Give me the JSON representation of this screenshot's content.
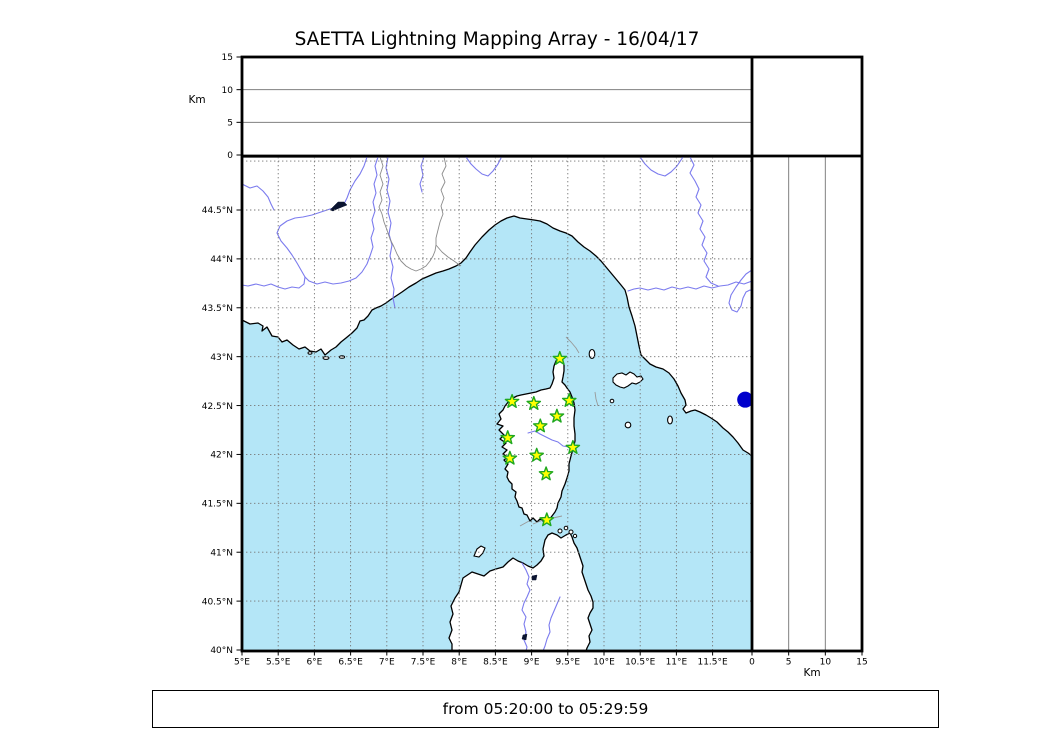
{
  "title": "SAETTA Lightning Mapping Array - 16/04/17",
  "footer": {
    "time_range": "from 05:20:00 to 05:29:59"
  },
  "colors": {
    "sea": "#b4e6f7",
    "land": "#ffffff",
    "coast": "#000000",
    "grid": "#777777",
    "river": "#7b7bee",
    "boundary": "#8a8a8a",
    "maritime": "#999999",
    "lake": "#0a1430",
    "station_fill": "#ffff00",
    "station_stroke": "#1fa81f",
    "source_dot": "#0000cc",
    "panel_line": "#808080"
  },
  "chart_data": {
    "type": "scatter",
    "title": "SAETTA Lightning Mapping Array - 16/04/17",
    "footer": "from 05:20:00 to 05:29:59",
    "map_panel": {
      "description": "Geographic map of Corsica / Ligurian sea region with SAETTA station positions (green stars) and one lightning source dot",
      "lon_range": [
        5.0,
        12.05
      ],
      "lat_range": [
        40.0,
        45.05
      ],
      "grid": true,
      "lon_ticks": [
        {
          "value": 5.0,
          "label": "5°E"
        },
        {
          "value": 5.5,
          "label": "5.5°E"
        },
        {
          "value": 6.0,
          "label": "6°E"
        },
        {
          "value": 6.5,
          "label": "6.5°E"
        },
        {
          "value": 7.0,
          "label": "7°E"
        },
        {
          "value": 7.5,
          "label": "7.5°E"
        },
        {
          "value": 8.0,
          "label": "8°E"
        },
        {
          "value": 8.5,
          "label": "8.5°E"
        },
        {
          "value": 9.0,
          "label": "9°E"
        },
        {
          "value": 9.5,
          "label": "9.5°E"
        },
        {
          "value": 10.0,
          "label": "10°E"
        },
        {
          "value": 10.5,
          "label": "10.5°E"
        },
        {
          "value": 11.0,
          "label": "11°E"
        },
        {
          "value": 11.5,
          "label": "11.5°E"
        }
      ],
      "lat_ticks": [
        {
          "value": 40.0,
          "label": "40°N"
        },
        {
          "value": 40.5,
          "label": "40.5°N"
        },
        {
          "value": 41.0,
          "label": "41°N"
        },
        {
          "value": 41.5,
          "label": "41.5°N"
        },
        {
          "value": 42.0,
          "label": "42°N"
        },
        {
          "value": 42.5,
          "label": "42.5°N"
        },
        {
          "value": 43.0,
          "label": "43°N"
        },
        {
          "value": 43.5,
          "label": "43.5°N"
        },
        {
          "value": 44.0,
          "label": "44°N"
        },
        {
          "value": 44.5,
          "label": "44.5°N"
        }
      ],
      "extra_gridlines_lat": [
        45.0
      ],
      "stations": [
        {
          "lon": 9.39,
          "lat": 42.98
        },
        {
          "lon": 8.73,
          "lat": 42.54
        },
        {
          "lon": 9.03,
          "lat": 42.52
        },
        {
          "lon": 9.52,
          "lat": 42.55
        },
        {
          "lon": 9.35,
          "lat": 42.39
        },
        {
          "lon": 9.12,
          "lat": 42.29
        },
        {
          "lon": 8.67,
          "lat": 42.17
        },
        {
          "lon": 9.57,
          "lat": 42.07
        },
        {
          "lon": 9.07,
          "lat": 41.99
        },
        {
          "lon": 8.7,
          "lat": 41.96
        },
        {
          "lon": 9.2,
          "lat": 41.8
        },
        {
          "lon": 9.21,
          "lat": 41.33
        }
      ],
      "lightning_sources": [
        {
          "lon": 11.95,
          "lat": 42.56
        }
      ]
    },
    "top_panel": {
      "description": "Altitude vs longitude panel (empty)",
      "ylabel": "Km",
      "ylim": [
        0,
        15
      ],
      "yticks": [
        0,
        5,
        10,
        15
      ],
      "inner_lines": [
        5,
        10
      ],
      "points": []
    },
    "right_panel": {
      "description": "Altitude vs latitude panel (empty)",
      "xlabel": "Km",
      "xlim": [
        0,
        15
      ],
      "xticks": [
        0,
        5,
        10,
        15
      ],
      "inner_lines": [
        5,
        10
      ],
      "points": []
    },
    "corner_panel": {
      "description": "empty corner panel",
      "points": []
    }
  }
}
